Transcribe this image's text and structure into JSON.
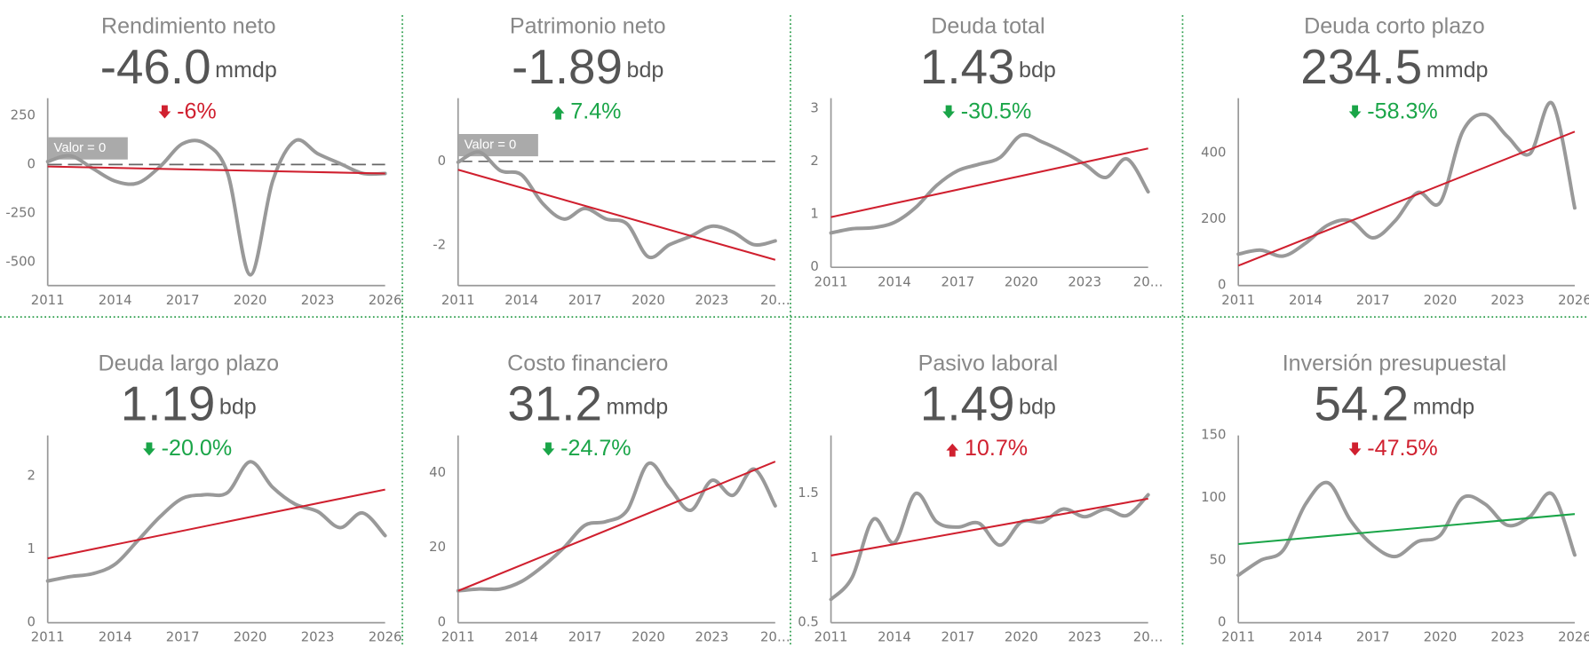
{
  "chart_data": [
    {
      "type": "line",
      "title": "Rendimiento neto",
      "kpi": "-46.0",
      "unit": "mmdp",
      "change": "-6%",
      "change_color": "#d0202f",
      "x": [
        2011,
        2012,
        2013,
        2014,
        2015,
        2016,
        2017,
        2018,
        2019,
        2020,
        2021,
        2022,
        2023,
        2024,
        2025,
        2026
      ],
      "values": [
        15,
        45,
        -20,
        -85,
        -95,
        -10,
        107,
        107,
        -45,
        -565,
        -85,
        122,
        56,
        5,
        -45,
        -46
      ],
      "color": "#999999",
      "trend_x": [
        2011,
        2026
      ],
      "trend_values": [
        -10,
        -46
      ],
      "trend_color": "#d0202f",
      "reference": {
        "value": 0,
        "label": "Valor = 0"
      },
      "xlim": [
        2011,
        2026
      ],
      "ylim": [
        -620,
        340
      ],
      "xticks": [
        2011,
        2014,
        2017,
        2020,
        2023,
        2026
      ],
      "yticks": [
        -500,
        -250,
        0,
        250
      ]
    },
    {
      "type": "line",
      "title": "Patrimonio neto",
      "kpi": "-1.89",
      "unit": "bdp",
      "change": "7.4%",
      "change_color": "#1aa548",
      "x": [
        2011,
        2012,
        2013,
        2014,
        2015,
        2016,
        2017,
        2018,
        2019,
        2020,
        2021,
        2022,
        2023,
        2024,
        2025,
        2026
      ],
      "values": [
        -0.02,
        0.22,
        -0.22,
        -0.32,
        -1.0,
        -1.37,
        -1.12,
        -1.37,
        -1.49,
        -2.27,
        -1.98,
        -1.78,
        -1.54,
        -1.68,
        -1.98,
        -1.89
      ],
      "color": "#999999",
      "trend_x": [
        2011,
        2026
      ],
      "trend_values": [
        -0.2,
        -2.34
      ],
      "trend_color": "#d0202f",
      "reference": {
        "value": 0,
        "label": "Valor = 0"
      },
      "xlim": [
        2011,
        2026
      ],
      "ylim": [
        -2.95,
        1.5
      ],
      "xticks": [
        2011,
        2014,
        2017,
        2020,
        2023,
        {
          "value": 2026,
          "label": "20…"
        }
      ],
      "yticks": [
        -2,
        0
      ]
    },
    {
      "type": "line",
      "title": "Deuda total",
      "kpi": "1.43",
      "unit": "bdp",
      "change": "-30.5%",
      "change_color": "#1aa548",
      "x": [
        2011,
        2012,
        2013,
        2014,
        2015,
        2016,
        2017,
        2018,
        2019,
        2020,
        2021,
        2022,
        2023,
        2024,
        2025,
        2026
      ],
      "values": [
        0.65,
        0.73,
        0.75,
        0.85,
        1.13,
        1.55,
        1.83,
        1.95,
        2.08,
        2.5,
        2.37,
        2.18,
        1.95,
        1.7,
        2.05,
        1.43
      ],
      "color": "#999999",
      "trend_x": [
        2011,
        2026
      ],
      "trend_values": [
        0.95,
        2.25
      ],
      "trend_color": "#d0202f",
      "xlim": [
        2011,
        2026
      ],
      "ylim": [
        0,
        3.2
      ],
      "xticks": [
        2011,
        2014,
        2017,
        2020,
        2023,
        {
          "value": 2026,
          "label": "20…"
        }
      ],
      "yticks": [
        0,
        1,
        2,
        3
      ]
    },
    {
      "type": "line",
      "title": "Deuda corto plazo",
      "kpi": "234.5",
      "unit": "mmdp",
      "change": "-58.3%",
      "change_color": "#1aa548",
      "x": [
        2011,
        2012,
        2013,
        2014,
        2015,
        2016,
        2017,
        2018,
        2019,
        2020,
        2021,
        2022,
        2023,
        2024,
        2025,
        2026
      ],
      "values": [
        95,
        107,
        89,
        128,
        183,
        196,
        144,
        196,
        281,
        251,
        465,
        517,
        450,
        398,
        550,
        234.5
      ],
      "color": "#999999",
      "trend_x": [
        2011,
        2026
      ],
      "trend_values": [
        60,
        465
      ],
      "trend_color": "#d0202f",
      "xlim": [
        2011,
        2026
      ],
      "ylim": [
        0,
        566
      ],
      "xticks": [
        2011,
        2014,
        2017,
        2020,
        2023,
        2026
      ],
      "yticks": [
        0,
        200,
        400
      ]
    },
    {
      "type": "line",
      "title": "Deuda largo plazo",
      "kpi": "1.19",
      "unit": "bdp",
      "change": "-20.0%",
      "change_color": "#1aa548",
      "x": [
        2011,
        2012,
        2013,
        2014,
        2015,
        2016,
        2017,
        2018,
        2019,
        2020,
        2021,
        2022,
        2023,
        2024,
        2025,
        2026
      ],
      "values": [
        0.57,
        0.63,
        0.67,
        0.8,
        1.12,
        1.45,
        1.7,
        1.75,
        1.78,
        2.2,
        1.85,
        1.62,
        1.52,
        1.3,
        1.5,
        1.19
      ],
      "color": "#999999",
      "trend_x": [
        2011,
        2026
      ],
      "trend_values": [
        0.88,
        1.82
      ],
      "trend_color": "#d0202f",
      "xlim": [
        2011,
        2026
      ],
      "ylim": [
        0,
        2.56
      ],
      "xticks": [
        2011,
        2014,
        2017,
        2020,
        2023,
        2026
      ],
      "yticks": [
        0,
        1,
        2
      ]
    },
    {
      "type": "line",
      "title": "Costo financiero",
      "kpi": "31.2",
      "unit": "mmdp",
      "change": "-24.7%",
      "change_color": "#1aa548",
      "x": [
        2011,
        2012,
        2013,
        2014,
        2015,
        2016,
        2017,
        2018,
        2019,
        2020,
        2021,
        2022,
        2023,
        2024,
        2025,
        2026
      ],
      "values": [
        8.5,
        9,
        9,
        11,
        15,
        20,
        26,
        27,
        30,
        42.5,
        36,
        30,
        38,
        34,
        41,
        31.2
      ],
      "color": "#999999",
      "trend_x": [
        2011,
        2026
      ],
      "trend_values": [
        8.5,
        43
      ],
      "trend_color": "#d0202f",
      "xlim": [
        2011,
        2026
      ],
      "ylim": [
        0,
        50
      ],
      "xticks": [
        2011,
        2014,
        2017,
        2020,
        2023,
        {
          "value": 2026,
          "label": "20…"
        }
      ],
      "yticks": [
        0,
        20,
        40
      ]
    },
    {
      "type": "line",
      "title": "Pasivo laboral",
      "kpi": "1.49",
      "unit": "bdp",
      "change": "10.7%",
      "change_color": "#d0202f",
      "x": [
        2011,
        2012,
        2013,
        2014,
        2015,
        2016,
        2017,
        2018,
        2019,
        2020,
        2021,
        2022,
        2023,
        2024,
        2025,
        2026
      ],
      "values": [
        0.68,
        0.85,
        1.3,
        1.12,
        1.5,
        1.28,
        1.24,
        1.27,
        1.1,
        1.28,
        1.28,
        1.38,
        1.32,
        1.38,
        1.33,
        1.49
      ],
      "color": "#999999",
      "trend_x": [
        2011,
        2026
      ],
      "trend_values": [
        1.02,
        1.46
      ],
      "trend_color": "#d0202f",
      "xlim": [
        2011,
        2026
      ],
      "ylim": [
        0.5,
        1.95
      ],
      "xticks": [
        2011,
        2014,
        2017,
        2020,
        2023,
        {
          "value": 2026,
          "label": "20…"
        }
      ],
      "yticks": [
        0.5,
        1,
        1.5
      ]
    },
    {
      "type": "line",
      "title": "Inversión presupuestal",
      "kpi": "54.2",
      "unit": "mmdp",
      "change": "-47.5%",
      "change_color": "#d0202f",
      "x": [
        2011,
        2012,
        2013,
        2014,
        2015,
        2016,
        2017,
        2018,
        2019,
        2020,
        2021,
        2022,
        2023,
        2024,
        2025,
        2026
      ],
      "values": [
        38,
        50,
        58,
        95,
        112,
        82,
        62,
        53,
        65,
        70,
        100,
        95,
        78,
        85,
        103,
        54.2
      ],
      "color": "#999999",
      "trend_x": [
        2011,
        2026
      ],
      "trend_values": [
        63,
        87
      ],
      "trend_color": "#1aa548",
      "xlim": [
        2011,
        2026
      ],
      "ylim": [
        0,
        150
      ],
      "xticks": [
        2011,
        2014,
        2017,
        2020,
        2023,
        2026
      ],
      "yticks": [
        0,
        50,
        100,
        150
      ]
    }
  ]
}
